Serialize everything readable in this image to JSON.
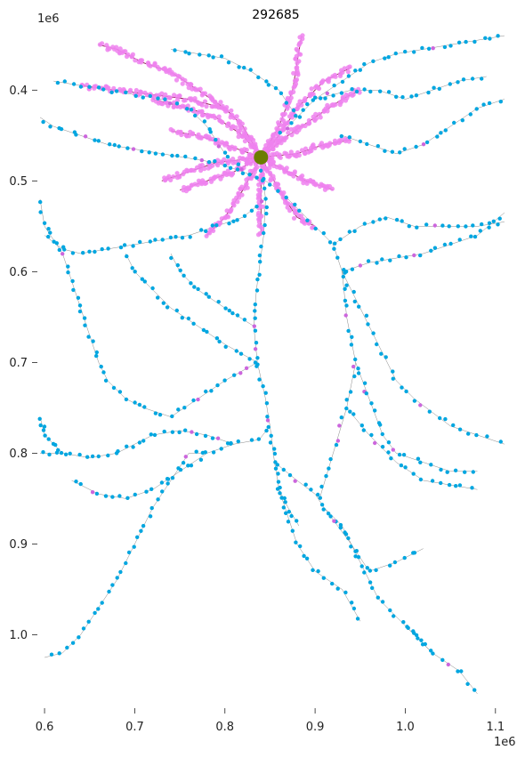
{
  "chart_data": {
    "type": "scatter",
    "title": "292685",
    "xlabel": "",
    "ylabel": "",
    "x_offset_label": "1e6",
    "y_offset_label": "1e6",
    "xlim": [
      0.595,
      1.115
    ],
    "ylim": [
      1.075,
      0.335
    ],
    "y_inverted": true,
    "grid": false,
    "x_ticks": [
      0.6,
      0.7,
      0.8,
      0.9,
      1.0,
      1.1
    ],
    "x_tick_labels": [
      "0.6",
      "0.7",
      "0.8",
      "0.9",
      "1.0",
      "1.1"
    ],
    "y_ticks": [
      0.4,
      0.5,
      0.6,
      0.7,
      0.8,
      0.9,
      1.0
    ],
    "y_tick_labels": [
      "0.4",
      "0.5",
      "0.6",
      "0.7",
      "0.8",
      "0.9",
      "1.0"
    ],
    "colors": {
      "axon_synapses": "#00a6e0",
      "dendrite_synapses": "#ee82ee",
      "skeleton": "#333333",
      "soma": "#6b7d00",
      "axon_minor_synapses": "#cc66dd"
    },
    "soma": {
      "x": 0.84,
      "y": 0.474
    },
    "axon_paths": [
      [
        [
          0.84,
          0.474
        ],
        [
          0.845,
          0.52
        ],
        [
          0.843,
          0.56
        ],
        [
          0.835,
          0.62
        ],
        [
          0.832,
          0.66
        ],
        [
          0.836,
          0.7
        ],
        [
          0.845,
          0.74
        ],
        [
          0.85,
          0.77
        ],
        [
          0.838,
          0.785
        ],
        [
          0.81,
          0.79
        ],
        [
          0.78,
          0.8
        ],
        [
          0.76,
          0.8
        ]
      ],
      [
        [
          0.85,
          0.77
        ],
        [
          0.855,
          0.81
        ],
        [
          0.86,
          0.84
        ],
        [
          0.87,
          0.86
        ],
        [
          0.882,
          0.88
        ]
      ],
      [
        [
          0.855,
          0.81
        ],
        [
          0.88,
          0.83
        ],
        [
          0.9,
          0.845
        ],
        [
          0.91,
          0.86
        ],
        [
          0.93,
          0.88
        ],
        [
          0.95,
          0.92
        ],
        [
          0.97,
          0.96
        ],
        [
          1.0,
          0.99
        ],
        [
          1.03,
          1.02
        ],
        [
          1.06,
          1.04
        ],
        [
          1.08,
          1.065
        ]
      ],
      [
        [
          0.86,
          0.84
        ],
        [
          0.87,
          0.87
        ],
        [
          0.88,
          0.9
        ],
        [
          0.9,
          0.93
        ],
        [
          0.93,
          0.95
        ],
        [
          0.95,
          0.985
        ]
      ],
      [
        [
          0.905,
          0.85
        ],
        [
          0.92,
          0.8
        ],
        [
          0.935,
          0.75
        ],
        [
          0.945,
          0.7
        ],
        [
          0.935,
          0.65
        ],
        [
          0.93,
          0.6
        ],
        [
          0.92,
          0.57
        ],
        [
          0.9,
          0.55
        ],
        [
          0.88,
          0.53
        ],
        [
          0.86,
          0.51
        ],
        [
          0.845,
          0.5
        ]
      ],
      [
        [
          0.93,
          0.6
        ],
        [
          0.96,
          0.59
        ],
        [
          0.99,
          0.585
        ],
        [
          1.02,
          0.58
        ],
        [
          1.05,
          0.57
        ],
        [
          1.08,
          0.56
        ],
        [
          1.11,
          0.535
        ]
      ],
      [
        [
          0.92,
          0.57
        ],
        [
          0.95,
          0.55
        ],
        [
          0.98,
          0.54
        ],
        [
          1.01,
          0.55
        ],
        [
          1.04,
          0.55
        ],
        [
          1.08,
          0.55
        ],
        [
          1.11,
          0.545
        ]
      ],
      [
        [
          0.93,
          0.6
        ],
        [
          0.95,
          0.64
        ],
        [
          0.97,
          0.68
        ],
        [
          0.99,
          0.72
        ],
        [
          1.01,
          0.74
        ],
        [
          1.05,
          0.77
        ],
        [
          1.08,
          0.78
        ],
        [
          1.11,
          0.79
        ]
      ],
      [
        [
          0.945,
          0.7
        ],
        [
          0.96,
          0.74
        ],
        [
          0.975,
          0.78
        ],
        [
          0.99,
          0.8
        ],
        [
          1.02,
          0.81
        ],
        [
          1.05,
          0.82
        ],
        [
          1.08,
          0.82
        ]
      ],
      [
        [
          0.935,
          0.75
        ],
        [
          0.96,
          0.78
        ],
        [
          0.99,
          0.81
        ],
        [
          1.02,
          0.83
        ],
        [
          1.05,
          0.835
        ],
        [
          1.08,
          0.84
        ]
      ],
      [
        [
          0.81,
          0.79
        ],
        [
          0.78,
          0.78
        ],
        [
          0.75,
          0.775
        ],
        [
          0.72,
          0.78
        ],
        [
          0.7,
          0.79
        ],
        [
          0.68,
          0.8
        ],
        [
          0.65,
          0.805
        ],
        [
          0.62,
          0.8
        ],
        [
          0.595,
          0.8
        ]
      ],
      [
        [
          0.78,
          0.8
        ],
        [
          0.75,
          0.82
        ],
        [
          0.72,
          0.84
        ],
        [
          0.69,
          0.85
        ],
        [
          0.66,
          0.845
        ],
        [
          0.63,
          0.83
        ]
      ],
      [
        [
          0.76,
          0.8
        ],
        [
          0.74,
          0.83
        ],
        [
          0.72,
          0.86
        ],
        [
          0.7,
          0.9
        ],
        [
          0.68,
          0.94
        ],
        [
          0.66,
          0.97
        ],
        [
          0.64,
          1.0
        ],
        [
          0.62,
          1.02
        ],
        [
          0.6,
          1.025
        ]
      ],
      [
        [
          0.836,
          0.7
        ],
        [
          0.8,
          0.72
        ],
        [
          0.77,
          0.74
        ],
        [
          0.74,
          0.76
        ],
        [
          0.71,
          0.75
        ],
        [
          0.69,
          0.74
        ],
        [
          0.67,
          0.72
        ],
        [
          0.66,
          0.7
        ],
        [
          0.65,
          0.67
        ],
        [
          0.64,
          0.64
        ],
        [
          0.63,
          0.61
        ],
        [
          0.62,
          0.58
        ],
        [
          0.6,
          0.55
        ],
        [
          0.595,
          0.52
        ]
      ],
      [
        [
          0.845,
          0.52
        ],
        [
          0.82,
          0.54
        ],
        [
          0.79,
          0.55
        ],
        [
          0.76,
          0.56
        ],
        [
          0.73,
          0.565
        ],
        [
          0.7,
          0.57
        ],
        [
          0.67,
          0.575
        ],
        [
          0.64,
          0.58
        ],
        [
          0.62,
          0.575
        ],
        [
          0.6,
          0.56
        ]
      ],
      [
        [
          0.845,
          0.5
        ],
        [
          0.82,
          0.49
        ],
        [
          0.79,
          0.48
        ],
        [
          0.76,
          0.475
        ],
        [
          0.73,
          0.47
        ],
        [
          0.7,
          0.465
        ],
        [
          0.67,
          0.46
        ],
        [
          0.64,
          0.45
        ],
        [
          0.61,
          0.44
        ],
        [
          0.595,
          0.43
        ]
      ],
      [
        [
          0.82,
          0.49
        ],
        [
          0.8,
          0.47
        ],
        [
          0.78,
          0.44
        ],
        [
          0.76,
          0.42
        ],
        [
          0.73,
          0.41
        ],
        [
          0.7,
          0.405
        ],
        [
          0.67,
          0.4
        ],
        [
          0.64,
          0.395
        ],
        [
          0.61,
          0.39
        ]
      ],
      [
        [
          0.86,
          0.45
        ],
        [
          0.88,
          0.43
        ],
        [
          0.9,
          0.41
        ],
        [
          0.93,
          0.39
        ],
        [
          0.96,
          0.37
        ],
        [
          0.99,
          0.36
        ],
        [
          1.02,
          0.355
        ],
        [
          1.05,
          0.35
        ],
        [
          1.08,
          0.345
        ],
        [
          1.11,
          0.34
        ]
      ],
      [
        [
          0.9,
          0.41
        ],
        [
          0.94,
          0.4
        ],
        [
          0.97,
          0.4
        ],
        [
          1.0,
          0.41
        ],
        [
          1.03,
          0.4
        ],
        [
          1.06,
          0.39
        ],
        [
          1.09,
          0.385
        ]
      ],
      [
        [
          0.93,
          0.45
        ],
        [
          0.96,
          0.46
        ],
        [
          0.99,
          0.47
        ],
        [
          1.02,
          0.46
        ],
        [
          1.05,
          0.44
        ],
        [
          1.08,
          0.42
        ],
        [
          1.11,
          0.41
        ]
      ],
      [
        [
          0.88,
          0.43
        ],
        [
          0.86,
          0.4
        ],
        [
          0.83,
          0.38
        ],
        [
          0.8,
          0.365
        ],
        [
          0.77,
          0.36
        ],
        [
          0.74,
          0.355
        ]
      ],
      [
        [
          0.836,
          0.7
        ],
        [
          0.8,
          0.68
        ],
        [
          0.77,
          0.66
        ],
        [
          0.74,
          0.64
        ],
        [
          0.72,
          0.62
        ],
        [
          0.7,
          0.6
        ],
        [
          0.69,
          0.58
        ]
      ],
      [
        [
          0.832,
          0.66
        ],
        [
          0.8,
          0.64
        ],
        [
          0.77,
          0.62
        ],
        [
          0.75,
          0.6
        ],
        [
          0.74,
          0.58
        ]
      ],
      [
        [
          0.91,
          0.86
        ],
        [
          0.94,
          0.9
        ],
        [
          0.96,
          0.93
        ],
        [
          0.99,
          0.92
        ],
        [
          1.02,
          0.905
        ]
      ],
      [
        [
          0.62,
          0.8
        ],
        [
          0.6,
          0.78
        ],
        [
          0.595,
          0.76
        ]
      ],
      [
        [
          1.0,
          0.99
        ],
        [
          1.03,
          1.02
        ]
      ]
    ],
    "dendrite_paths": [
      [
        [
          0.84,
          0.474
        ],
        [
          0.86,
          0.44
        ],
        [
          0.875,
          0.4
        ],
        [
          0.88,
          0.37
        ],
        [
          0.885,
          0.34
        ]
      ],
      [
        [
          0.84,
          0.474
        ],
        [
          0.82,
          0.44
        ],
        [
          0.8,
          0.42
        ],
        [
          0.77,
          0.4
        ],
        [
          0.74,
          0.38
        ],
        [
          0.71,
          0.37
        ],
        [
          0.68,
          0.355
        ],
        [
          0.66,
          0.35
        ]
      ],
      [
        [
          0.8,
          0.42
        ],
        [
          0.76,
          0.41
        ],
        [
          0.72,
          0.405
        ],
        [
          0.68,
          0.4
        ],
        [
          0.64,
          0.395
        ]
      ],
      [
        [
          0.84,
          0.474
        ],
        [
          0.87,
          0.45
        ],
        [
          0.9,
          0.43
        ],
        [
          0.93,
          0.41
        ],
        [
          0.95,
          0.4
        ]
      ],
      [
        [
          0.84,
          0.474
        ],
        [
          0.88,
          0.47
        ],
        [
          0.91,
          0.46
        ],
        [
          0.94,
          0.455
        ]
      ],
      [
        [
          0.84,
          0.474
        ],
        [
          0.8,
          0.46
        ],
        [
          0.77,
          0.45
        ],
        [
          0.74,
          0.445
        ]
      ],
      [
        [
          0.84,
          0.474
        ],
        [
          0.81,
          0.49
        ],
        [
          0.78,
          0.5
        ],
        [
          0.75,
          0.51
        ]
      ],
      [
        [
          0.84,
          0.474
        ],
        [
          0.82,
          0.51
        ],
        [
          0.8,
          0.54
        ],
        [
          0.78,
          0.56
        ]
      ],
      [
        [
          0.84,
          0.474
        ],
        [
          0.84,
          0.52
        ],
        [
          0.84,
          0.56
        ]
      ],
      [
        [
          0.84,
          0.474
        ],
        [
          0.86,
          0.51
        ],
        [
          0.88,
          0.54
        ],
        [
          0.9,
          0.55
        ]
      ],
      [
        [
          0.84,
          0.474
        ],
        [
          0.87,
          0.49
        ],
        [
          0.89,
          0.5
        ],
        [
          0.92,
          0.51
        ]
      ],
      [
        [
          0.84,
          0.474
        ],
        [
          0.79,
          0.48
        ],
        [
          0.76,
          0.49
        ],
        [
          0.73,
          0.5
        ]
      ],
      [
        [
          0.84,
          0.474
        ],
        [
          0.86,
          0.45
        ],
        [
          0.88,
          0.42
        ],
        [
          0.91,
          0.39
        ],
        [
          0.94,
          0.375
        ]
      ],
      [
        [
          0.84,
          0.474
        ],
        [
          0.82,
          0.45
        ],
        [
          0.79,
          0.43
        ],
        [
          0.76,
          0.42
        ],
        [
          0.72,
          0.41
        ]
      ]
    ]
  }
}
